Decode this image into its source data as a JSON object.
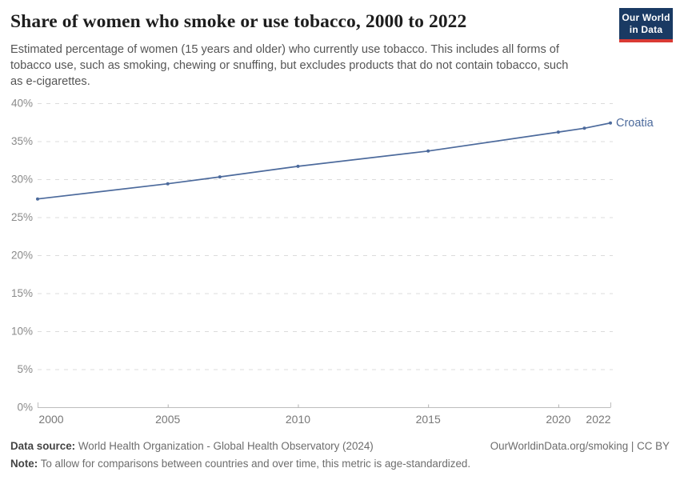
{
  "header": {
    "title": "Share of women who smoke or use tobacco, 2000 to 2022",
    "subtitle": "Estimated percentage of women (15 years and older) who currently use tobacco. This includes all forms of tobacco use, such as smoking, chewing or snuffing, but excludes products that do not contain tobacco, such as e-cigarettes.",
    "logo": {
      "line1": "Our World",
      "line2": "in Data",
      "bg_color": "#1a3a63",
      "accent_color": "#d93a34"
    }
  },
  "chart_data": {
    "type": "line",
    "title": "Share of women who smoke or use tobacco, 2000 to 2022",
    "xlabel": "",
    "ylabel": "",
    "xlim": [
      2000,
      2022
    ],
    "ylim": [
      0,
      40
    ],
    "grid": "horizontal dashed",
    "legend_position": "end-of-line label",
    "x_ticks": [
      2000,
      2005,
      2010,
      2015,
      2020,
      2022
    ],
    "y_ticks_percent": [
      0,
      5,
      10,
      15,
      20,
      25,
      30,
      35,
      40
    ],
    "series": [
      {
        "name": "Croatia",
        "color": "#4c6a9c",
        "x": [
          2000,
          2005,
          2007,
          2010,
          2015,
          2020,
          2021,
          2022
        ],
        "values": [
          27.4,
          29.4,
          30.3,
          31.7,
          33.7,
          36.2,
          36.7,
          37.4
        ]
      }
    ]
  },
  "footer": {
    "data_source_label": "Data source:",
    "data_source": " World Health Organization - Global Health Observatory (2024)",
    "link": "OurWorldinData.org/smoking | CC BY",
    "note_label": "Note:",
    "note": " To allow for comparisons between countries and over time, this metric is age-standardized."
  }
}
